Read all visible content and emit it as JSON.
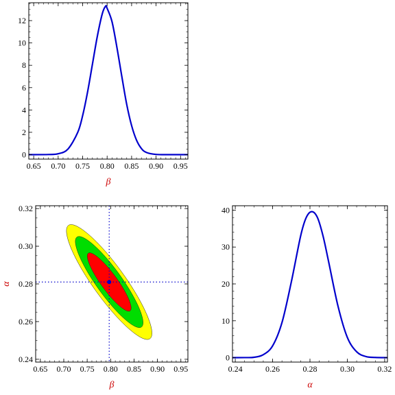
{
  "chart_data": [
    {
      "type": "line",
      "panel": "top-left",
      "xlabel": "β",
      "ylabel": "",
      "xlim": [
        0.64,
        0.965
      ],
      "ylim": [
        -0.4,
        13.6
      ],
      "xticks": [
        0.65,
        0.7,
        0.75,
        0.8,
        0.85,
        0.9,
        0.95
      ],
      "xtick_labels": [
        "0.65",
        "0.70",
        "0.75",
        "0.80",
        "0.85",
        "0.90",
        "0.95"
      ],
      "yticks": [
        0,
        2,
        4,
        6,
        8,
        10,
        12
      ],
      "ytick_labels": [
        "0",
        "2",
        "4",
        "6",
        "8",
        "10",
        "12"
      ],
      "series": [
        {
          "color": "#0000cc",
          "x": [
            0.64,
            0.68,
            0.7,
            0.72,
            0.74,
            0.75,
            0.76,
            0.77,
            0.78,
            0.79,
            0.797,
            0.8,
            0.81,
            0.82,
            0.83,
            0.84,
            0.85,
            0.86,
            0.87,
            0.88,
            0.9,
            0.93,
            0.965
          ],
          "y": [
            0.0,
            0.01,
            0.08,
            0.5,
            2.0,
            3.5,
            5.6,
            8.1,
            10.6,
            12.6,
            13.3,
            13.1,
            11.9,
            9.6,
            7.0,
            4.5,
            2.6,
            1.3,
            0.55,
            0.2,
            0.02,
            0.0,
            0.0
          ]
        }
      ]
    },
    {
      "type": "contour",
      "panel": "bottom-left",
      "xlabel": "β",
      "ylabel": "α",
      "xlim": [
        0.64,
        0.965
      ],
      "ylim": [
        0.2385,
        0.3215
      ],
      "xticks": [
        0.65,
        0.7,
        0.75,
        0.8,
        0.85,
        0.9,
        0.95
      ],
      "xtick_labels": [
        "0.65",
        "0.70",
        "0.75",
        "0.80",
        "0.85",
        "0.90",
        "0.95"
      ],
      "yticks": [
        0.24,
        0.26,
        0.28,
        0.3,
        0.32
      ],
      "ytick_labels": [
        "0.24",
        "0.26",
        "0.28",
        "0.30",
        "0.32"
      ],
      "best_fit": {
        "beta": 0.797,
        "alpha": 0.281
      },
      "regions": [
        {
          "color": "#ffff00",
          "beta_sigma": 0.0913,
          "alpha_sigma": 0.0305,
          "correlation": -0.89
        },
        {
          "color": "#00dd00",
          "beta_sigma": 0.0723,
          "alpha_sigma": 0.0242,
          "correlation": -0.89
        },
        {
          "color": "#ff0000",
          "beta_sigma": 0.0468,
          "alpha_sigma": 0.0155,
          "correlation": -0.89
        }
      ]
    },
    {
      "type": "line",
      "panel": "bottom-right",
      "xlabel": "α",
      "ylabel": "",
      "xlim": [
        0.2385,
        0.3215
      ],
      "ylim": [
        -1.2,
        41.2
      ],
      "xticks": [
        0.24,
        0.26,
        0.28,
        0.3,
        0.32
      ],
      "xtick_labels": [
        "0.24",
        "0.26",
        "0.28",
        "0.30",
        "0.32"
      ],
      "yticks": [
        0,
        10,
        20,
        30,
        40
      ],
      "ytick_labels": [
        "0",
        "10",
        "20",
        "30",
        "40"
      ],
      "series": [
        {
          "color": "#0000cc",
          "x": [
            0.2385,
            0.245,
            0.25,
            0.255,
            0.26,
            0.265,
            0.27,
            0.275,
            0.278,
            0.281,
            0.284,
            0.287,
            0.29,
            0.295,
            0.3,
            0.305,
            0.31,
            0.315,
            0.3215
          ],
          "y": [
            0.0,
            0.02,
            0.1,
            0.8,
            3.2,
            9.5,
            20.5,
            33.0,
            38.0,
            39.6,
            38.0,
            33.0,
            26.0,
            14.0,
            5.5,
            1.6,
            0.3,
            0.05,
            0.0
          ]
        }
      ]
    }
  ]
}
